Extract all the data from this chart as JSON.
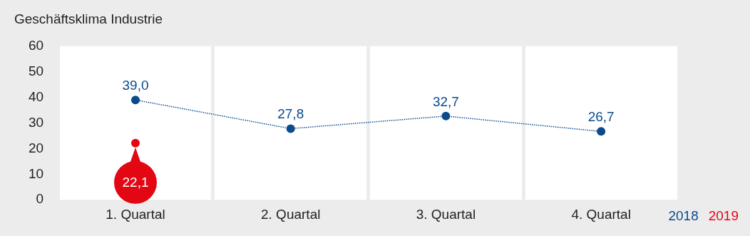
{
  "chart_data": {
    "type": "line",
    "title": "Geschäftsklima Industrie",
    "categories": [
      "1. Quartal",
      "2. Quartal",
      "3. Quartal",
      "4. Quartal"
    ],
    "series": [
      {
        "name": "2018",
        "color": "#0b4a8b",
        "values": [
          39.0,
          27.8,
          32.7,
          26.7
        ],
        "value_labels": [
          "39,0",
          "27,8",
          "32,7",
          "26,7"
        ],
        "line_style": "dotted",
        "marker": "circle"
      },
      {
        "name": "2019",
        "color": "#e30613",
        "values": [
          22.1,
          null,
          null,
          null
        ],
        "value_labels": [
          "22,1",
          null,
          null,
          null
        ],
        "marker": "circle"
      }
    ],
    "ylim": [
      0,
      60
    ],
    "yticks": [
      0,
      10,
      20,
      30,
      40,
      50,
      60
    ],
    "grid": "x",
    "legend": "bottom right"
  }
}
